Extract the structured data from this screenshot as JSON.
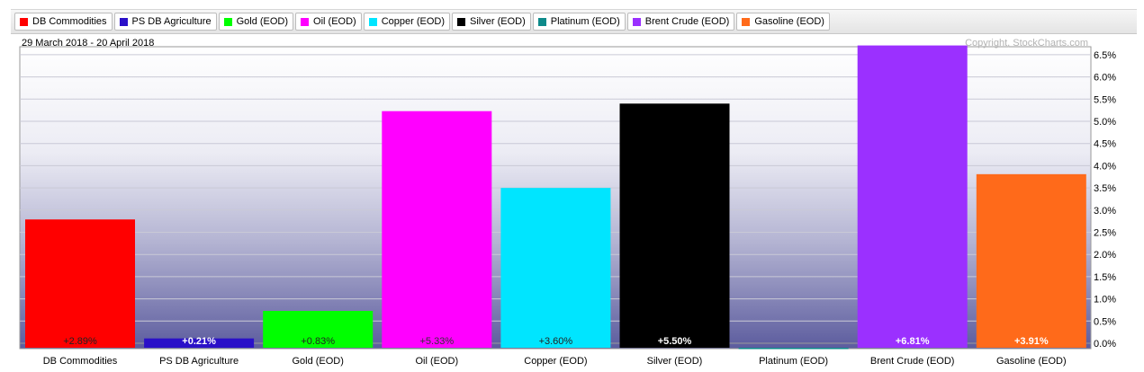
{
  "date_range": "29 March 2018 - 20 April 2018",
  "copyright": "Copyright, StockCharts.com",
  "chart_data": {
    "type": "bar",
    "categories": [
      "DB Commodities",
      "PS DB Agriculture",
      "Gold (EOD)",
      "Oil (EOD)",
      "Copper (EOD)",
      "Silver (EOD)",
      "Platinum (EOD)",
      "Brent Crude (EOD)",
      "Gasoline (EOD)"
    ],
    "values": [
      2.89,
      0.21,
      0.83,
      5.33,
      3.6,
      5.5,
      -0.02,
      6.81,
      3.91
    ],
    "value_labels": [
      "+2.89%",
      "+0.21%",
      "+0.83%",
      "+5.33%",
      "+3.60%",
      "+5.50%",
      "",
      "+6.81%",
      "+3.91%"
    ],
    "colors": [
      "#ff0000",
      "#2a10c8",
      "#00ff00",
      "#ff00ff",
      "#00e5ff",
      "#000000",
      "#0e8a8a",
      "#9b30ff",
      "#ff6a1a"
    ],
    "value_label_colors": [
      "#222222",
      "#ffffff",
      "#222222",
      "#333333",
      "#222222",
      "#ffffff",
      "#ffffff",
      "#ffffff",
      "#ffffff"
    ],
    "y_ticks": [
      "0.0%",
      "0.5%",
      "1.0%",
      "1.5%",
      "2.0%",
      "2.5%",
      "3.0%",
      "3.5%",
      "4.0%",
      "4.5%",
      "5.0%",
      "5.5%",
      "6.0%",
      "6.5%"
    ],
    "ylim": [
      0,
      6.75
    ],
    "grid": true,
    "legend": "top"
  }
}
